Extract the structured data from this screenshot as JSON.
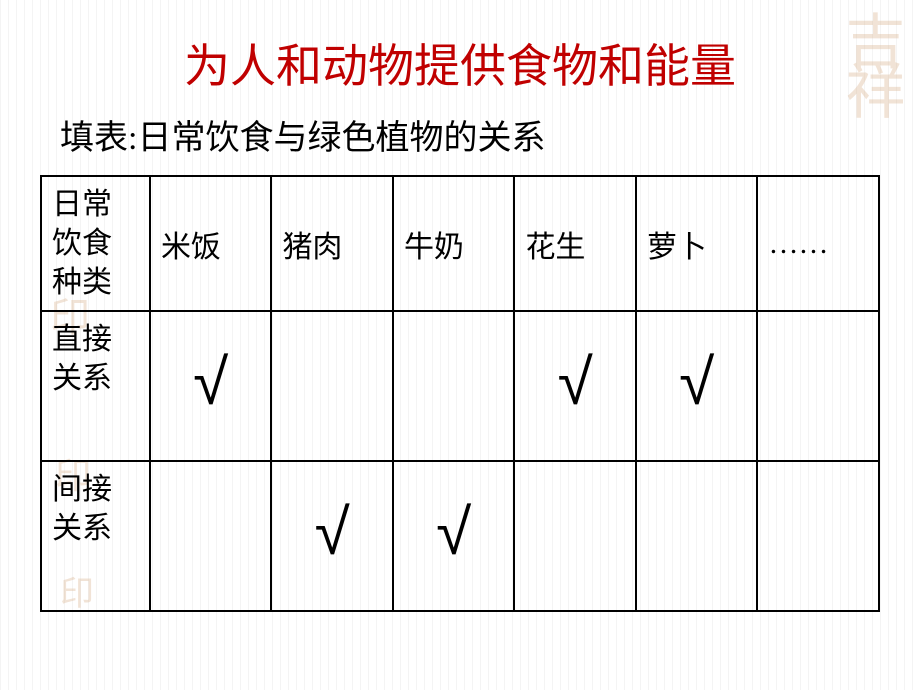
{
  "title": {
    "text": "为人和动物提供食物和能量",
    "color": "#c00000",
    "fontsize": 46
  },
  "subtitle": {
    "text": "填表:日常饮食与绿色植物的关系",
    "color": "#000000",
    "fontsize": 34
  },
  "table": {
    "type": "table",
    "border_color": "#000000",
    "row_header_label": "日常\n饮食\n种类",
    "columns": [
      "米饭",
      "猪肉",
      "牛奶",
      "花生",
      "萝卜",
      "……"
    ],
    "rows": [
      {
        "label": "直接\n关系",
        "cells": [
          "√",
          "",
          "",
          "√",
          "√",
          ""
        ]
      },
      {
        "label": "间接\n关系",
        "cells": [
          "",
          "√",
          "√",
          "",
          "",
          ""
        ]
      }
    ],
    "header_fontsize": 30,
    "check_fontsize": 64,
    "background_color": "#ffffff"
  },
  "watermarks": {
    "color": "#d9b08c",
    "top_right": "吉祥",
    "left": "印"
  }
}
